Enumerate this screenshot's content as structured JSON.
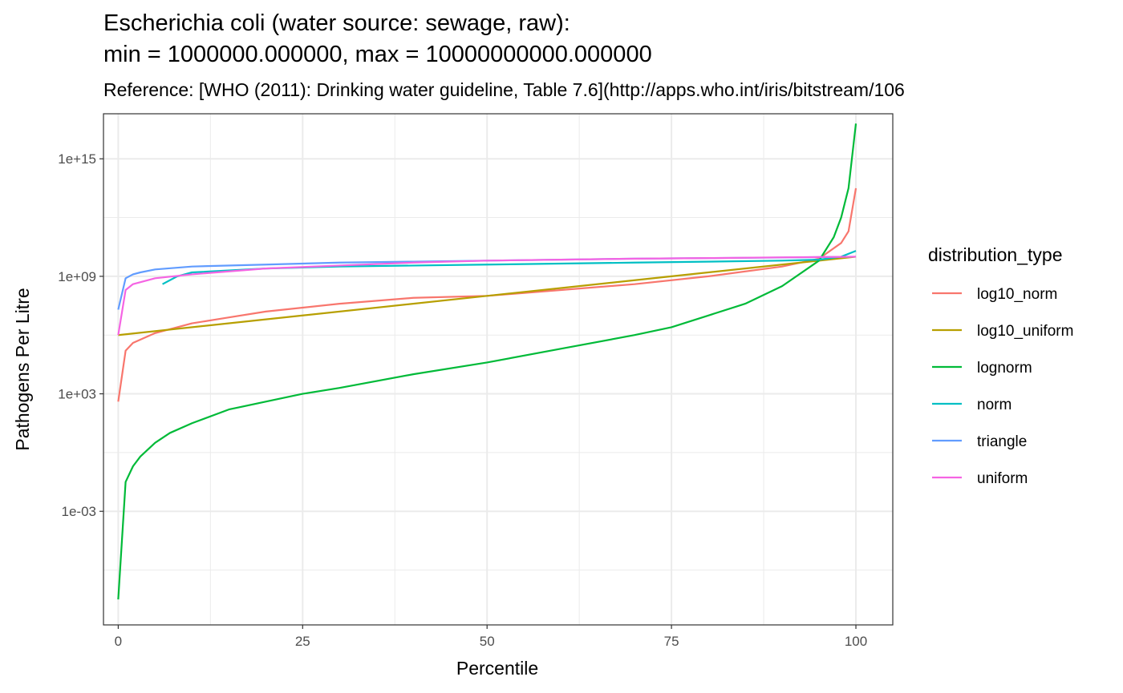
{
  "chart_data": {
    "type": "line",
    "title": "Escherichia coli (water source: sewage, raw):",
    "title_line2": "min = 1000000.000000, max = 10000000000.000000",
    "subtitle": "Reference: [WHO (2011): Drinking water guideline, Table 7.6](http://apps.who.int/iris/bitstream/106",
    "xlabel": "Percentile",
    "ylabel": "Pathogens Per Litre",
    "y_scale": "log10",
    "xlim": [
      -2,
      105
    ],
    "ylim_log10": [
      -8.8,
      17.3
    ],
    "x_ticks": [
      0,
      25,
      50,
      75,
      100
    ],
    "x_tick_labels": [
      "0",
      "25",
      "50",
      "75",
      "100"
    ],
    "y_ticks_log10": [
      -3,
      3,
      9,
      15
    ],
    "y_tick_labels": [
      "1e-03",
      "1e+03",
      "1e+09",
      "1e+15"
    ],
    "grid": true,
    "legend": {
      "title": "distribution_type",
      "placement": "right"
    },
    "series": [
      {
        "name": "log10_norm",
        "color": "#F8766D",
        "points": [
          [
            0,
            2.6
          ],
          [
            1,
            5.2
          ],
          [
            2,
            5.6
          ],
          [
            5,
            6.1
          ],
          [
            10,
            6.6
          ],
          [
            15,
            6.9
          ],
          [
            20,
            7.2
          ],
          [
            25,
            7.4
          ],
          [
            30,
            7.6
          ],
          [
            40,
            7.9
          ],
          [
            50,
            8.0
          ],
          [
            60,
            8.3
          ],
          [
            70,
            8.6
          ],
          [
            80,
            9.0
          ],
          [
            90,
            9.5
          ],
          [
            95,
            9.9
          ],
          [
            98,
            10.7
          ],
          [
            99,
            11.3
          ],
          [
            100,
            13.5
          ]
        ]
      },
      {
        "name": "log10_uniform",
        "color": "#B79F00",
        "points": [
          [
            0,
            6.0
          ],
          [
            25,
            7.0
          ],
          [
            50,
            8.0
          ],
          [
            75,
            9.0
          ],
          [
            100,
            10.0
          ]
        ]
      },
      {
        "name": "lognorm",
        "color": "#00BA38",
        "points": [
          [
            0,
            -7.5
          ],
          [
            1,
            -1.5
          ],
          [
            2,
            -0.7
          ],
          [
            3,
            -0.2
          ],
          [
            5,
            0.5
          ],
          [
            7,
            1.0
          ],
          [
            10,
            1.5
          ],
          [
            15,
            2.2
          ],
          [
            20,
            2.6
          ],
          [
            25,
            3.0
          ],
          [
            30,
            3.3
          ],
          [
            40,
            4.0
          ],
          [
            50,
            4.6
          ],
          [
            60,
            5.3
          ],
          [
            70,
            6.0
          ],
          [
            75,
            6.4
          ],
          [
            80,
            7.0
          ],
          [
            85,
            7.6
          ],
          [
            90,
            8.5
          ],
          [
            95,
            9.8
          ],
          [
            97,
            11.0
          ],
          [
            98,
            12.0
          ],
          [
            99,
            13.5
          ],
          [
            100,
            16.8
          ]
        ]
      },
      {
        "name": "norm",
        "color": "#00BFC4",
        "points": [
          [
            6,
            8.6
          ],
          [
            8,
            9.0
          ],
          [
            10,
            9.2
          ],
          [
            20,
            9.4
          ],
          [
            30,
            9.5
          ],
          [
            50,
            9.6
          ],
          [
            70,
            9.7
          ],
          [
            90,
            9.8
          ],
          [
            95,
            9.85
          ],
          [
            98,
            10.0
          ],
          [
            100,
            10.3
          ]
        ]
      },
      {
        "name": "triangle",
        "color": "#619CFF",
        "points": [
          [
            0,
            7.3
          ],
          [
            1,
            8.9
          ],
          [
            2,
            9.1
          ],
          [
            3,
            9.2
          ],
          [
            5,
            9.35
          ],
          [
            10,
            9.5
          ],
          [
            20,
            9.6
          ],
          [
            30,
            9.7
          ],
          [
            40,
            9.75
          ],
          [
            50,
            9.8
          ],
          [
            60,
            9.85
          ],
          [
            70,
            9.9
          ],
          [
            80,
            9.93
          ],
          [
            90,
            9.96
          ],
          [
            100,
            10.0
          ]
        ]
      },
      {
        "name": "uniform",
        "color": "#F564E3",
        "points": [
          [
            0,
            6.0
          ],
          [
            1,
            8.3
          ],
          [
            2,
            8.6
          ],
          [
            5,
            8.9
          ],
          [
            10,
            9.1
          ],
          [
            20,
            9.4
          ],
          [
            30,
            9.55
          ],
          [
            40,
            9.7
          ],
          [
            50,
            9.8
          ],
          [
            60,
            9.85
          ],
          [
            70,
            9.9
          ],
          [
            80,
            9.93
          ],
          [
            90,
            9.97
          ],
          [
            100,
            10.0
          ]
        ]
      }
    ]
  }
}
